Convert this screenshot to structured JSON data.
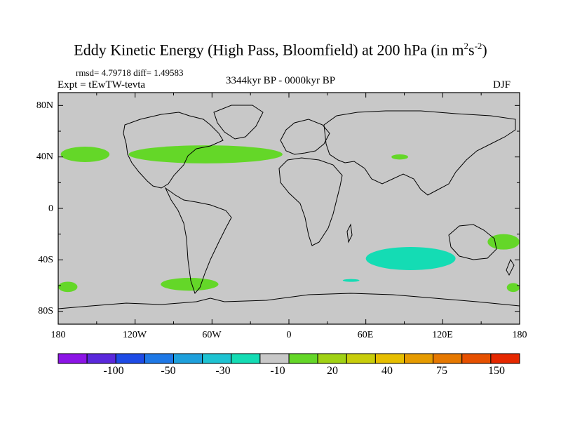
{
  "title": {
    "main": "Eddy Kinetic Energy (High Pass, Bloomfield) at 200 hPa (in m",
    "sup1": "2",
    "s": "s",
    "sup2": "-2",
    "close": ")"
  },
  "stats": "rmsd= 4.79718 diff= 1.49583",
  "experiment": "Expt = tEwTW-tevta",
  "period": "3344kyr BP - 0000kyr BP",
  "season": "DJF",
  "y_ticks": [
    "80N",
    "40N",
    "0",
    "40S",
    "80S"
  ],
  "x_ticks": [
    "180",
    "120W",
    "60W",
    "0",
    "60E",
    "120E",
    "180"
  ],
  "colorbar": {
    "colors": [
      "#8c14e6",
      "#5a28dc",
      "#1e4be6",
      "#1e78e6",
      "#1ea0dc",
      "#1ec3d2",
      "#14dcb4",
      "#c8c8c8",
      "#64d728",
      "#a0d214",
      "#c8cd0a",
      "#e6be00",
      "#e69b00",
      "#e67800",
      "#e65000",
      "#e62800"
    ],
    "labels": [
      "-100",
      "-50",
      "-30",
      "-10",
      "20",
      "40",
      "75",
      "150"
    ]
  },
  "map": {
    "background": "#c8c8c8"
  },
  "anomalies": [
    {
      "name": "north-pacific-east",
      "color": "#64d728",
      "lon": [
        -178,
        -140
      ],
      "lat": [
        36,
        48
      ]
    },
    {
      "name": "north-america-atlantic",
      "color": "#64d728",
      "lon": [
        -125,
        -5
      ],
      "lat": [
        35,
        49
      ]
    },
    {
      "name": "asia-small",
      "color": "#64d728",
      "lon": [
        80,
        93
      ],
      "lat": [
        38,
        42
      ]
    },
    {
      "name": "australia-se",
      "color": "#64d728",
      "lon": [
        155,
        180
      ],
      "lat": [
        -32,
        -20
      ]
    },
    {
      "name": "south-indian-ocean",
      "color": "#14dcb4",
      "lon": [
        60,
        130
      ],
      "lat": [
        -48,
        -30
      ]
    },
    {
      "name": "south-atlantic-small",
      "color": "#14dcb4",
      "lon": [
        42,
        55
      ],
      "lat": [
        -57,
        -55
      ]
    },
    {
      "name": "south-pacific-east",
      "color": "#64d728",
      "lon": [
        -100,
        -55
      ],
      "lat": [
        -64,
        -54
      ]
    },
    {
      "name": "south-pacific-west-edge",
      "color": "#64d728",
      "lon": [
        -180,
        -165
      ],
      "lat": [
        -65,
        -57
      ]
    },
    {
      "name": "south-east-edge",
      "color": "#64d728",
      "lon": [
        170,
        180
      ],
      "lat": [
        -65,
        -58
      ]
    }
  ]
}
